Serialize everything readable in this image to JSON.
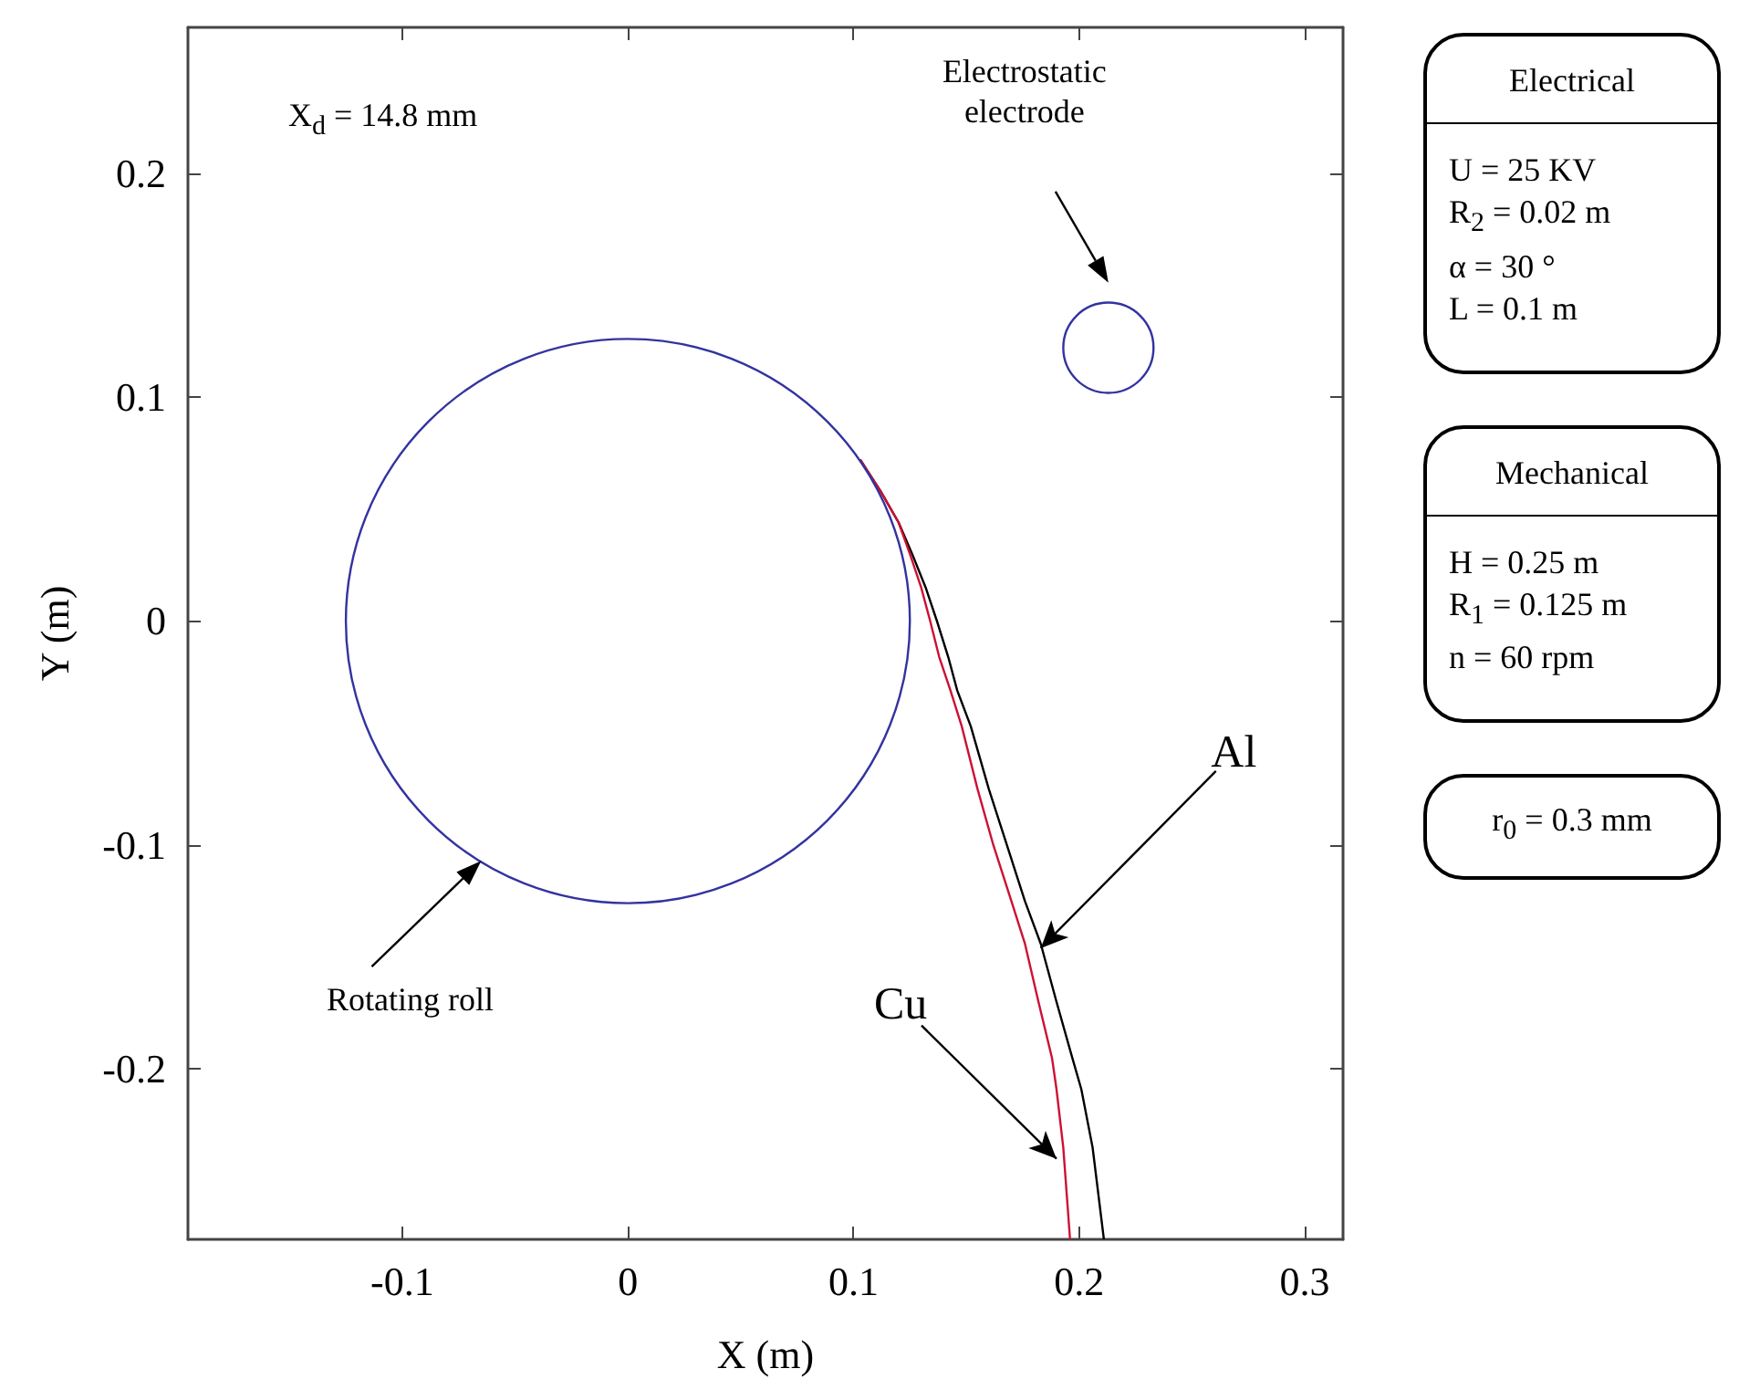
{
  "chart_data": {
    "type": "line",
    "xlabel": "X (m)",
    "ylabel": "Y (m)",
    "xlim": [
      -0.195,
      0.317
    ],
    "ylim": [
      -0.276,
      0.265
    ],
    "xticks": [
      -0.1,
      0,
      0.1,
      0.2,
      0.3
    ],
    "yticks": [
      -0.2,
      -0.1,
      0,
      0.1,
      0.2
    ],
    "series": [
      {
        "color": "#000000",
        "x": [
          0.103,
          0.112,
          0.12,
          0.126,
          0.132,
          0.137,
          0.142,
          0.146,
          0.152,
          0.16,
          0.168,
          0.176,
          0.183,
          0.19,
          0.197,
          0.201,
          0.206,
          0.211
        ],
        "values": [
          0.072,
          0.058,
          0.044,
          0.03,
          0.015,
          0,
          -0.016,
          -0.031,
          -0.047,
          -0.075,
          -0.1,
          -0.125,
          -0.144,
          -0.17,
          -0.195,
          -0.209,
          -0.235,
          -0.276
        ]
      },
      {
        "color": "#cc1133",
        "x": [
          0.103,
          0.112,
          0.12,
          0.125,
          0.13,
          0.134,
          0.138,
          0.143,
          0.148,
          0.155,
          0.162,
          0.17,
          0.176,
          0.182,
          0.188,
          0.19,
          0.193,
          0.196
        ],
        "values": [
          0.072,
          0.058,
          0.044,
          0.03,
          0.015,
          0,
          -0.016,
          -0.031,
          -0.047,
          -0.075,
          -0.1,
          -0.125,
          -0.144,
          -0.17,
          -0.195,
          -0.209,
          -0.235,
          -0.276
        ]
      }
    ],
    "annotations": [
      "X$_{d}$ = 14.8 mm",
      "Electrical\nU = 25 KV\nR$_{2}$ = 0.02 m\nα = 30 °\nL = 0.1 m",
      "Mechanical\nH = 0.25 m\nR$_{1}$ = 0.125 m\nn = 60 rpm",
      "r$_{0}$ = 0.3 mm",
      "Rotating roll",
      "Electrostatic\nelectrode",
      {
        "text": "Cu",
        "x": 0.19,
        "y": -0.24
      },
      {
        "text": "Al",
        "x": 0.183,
        "y": -0.146
      }
    ]
  }
}
